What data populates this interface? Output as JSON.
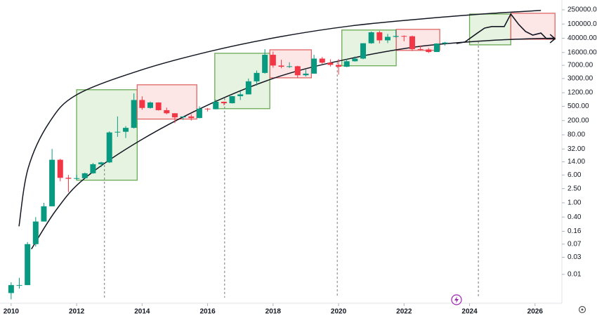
{
  "chart_data": {
    "type": "candlestick",
    "log_scale": true,
    "grid": false,
    "up_color": "#089981",
    "down_color": "#f23645",
    "xlim": [
      2009.66,
      2026.82
    ],
    "xticks": [
      2010,
      2012,
      2014,
      2016,
      2018,
      2020,
      2022,
      2024,
      2026
    ],
    "ylim": [
      0.0017,
      470000
    ],
    "yticks": [
      {
        "value": 250000,
        "label": "250000.00"
      },
      {
        "value": 100000,
        "label": "100000.00"
      },
      {
        "value": 40000,
        "label": "40000.00"
      },
      {
        "value": 16000,
        "label": "16000.00"
      },
      {
        "value": 7000,
        "label": "7000.00"
      },
      {
        "value": 3000,
        "label": "3000.00"
      },
      {
        "value": 1200,
        "label": "1200.00"
      },
      {
        "value": 500,
        "label": "500.00"
      },
      {
        "value": 200,
        "label": "200.00"
      },
      {
        "value": 80,
        "label": "80.00"
      },
      {
        "value": 32,
        "label": "32.00"
      },
      {
        "value": 14,
        "label": "14.00"
      },
      {
        "value": 6,
        "label": "6.00"
      },
      {
        "value": 2.5,
        "label": "2.50"
      },
      {
        "value": 1,
        "label": "1.00"
      },
      {
        "value": 0.4,
        "label": "0.40"
      },
      {
        "value": 0.16,
        "label": "0.16"
      },
      {
        "value": 0.07,
        "label": "0.07"
      },
      {
        "value": 0.03,
        "label": "0.03"
      },
      {
        "value": 0.01,
        "label": "0.01"
      }
    ],
    "x": [
      2010.0,
      2010.25,
      2010.5,
      2010.75,
      2011.0,
      2011.25,
      2011.5,
      2011.75,
      2012.0,
      2012.25,
      2012.5,
      2012.75,
      2013.0,
      2013.25,
      2013.5,
      2013.75,
      2014.0,
      2014.25,
      2014.5,
      2014.75,
      2015.0,
      2015.25,
      2015.5,
      2015.75,
      2016.0,
      2016.25,
      2016.5,
      2016.75,
      2017.0,
      2017.25,
      2017.5,
      2017.75,
      2018.0,
      2018.25,
      2018.5,
      2018.75,
      2019.0,
      2019.25,
      2019.5,
      2019.75,
      2020.0,
      2020.25,
      2020.5,
      2020.75,
      2021.0,
      2021.25,
      2021.5,
      2021.75,
      2022.0,
      2022.25,
      2022.5,
      2022.75,
      2023.0,
      2023.25
    ],
    "open": [
      0.003,
      0.005,
      0.005,
      0.07,
      0.3,
      0.8,
      16,
      5,
      4.7,
      4.9,
      6.7,
      12,
      13.5,
      93,
      97,
      125,
      750,
      450,
      640,
      390,
      320,
      245,
      260,
      235,
      430,
      415,
      670,
      610,
      960,
      1080,
      2500,
      4300,
      13800,
      6900,
      6400,
      6600,
      3700,
      4100,
      10800,
      8300,
      7200,
      6400,
      9100,
      10800,
      29000,
      58800,
      35000,
      43800,
      46300,
      45500,
      19900,
      19400,
      16500,
      28500
    ],
    "high": [
      0.006,
      0.008,
      0.08,
      0.4,
      1.0,
      32,
      17,
      6,
      6,
      7,
      13,
      14,
      100,
      260,
      140,
      1150,
      950,
      680,
      650,
      460,
      320,
      260,
      300,
      500,
      450,
      770,
      680,
      980,
      1300,
      3000,
      5000,
      19800,
      17000,
      10000,
      8500,
      6800,
      5300,
      13800,
      12000,
      10300,
      10500,
      10400,
      12400,
      29000,
      61700,
      64800,
      52900,
      69000,
      48000,
      47400,
      25200,
      21400,
      29000,
      31800
    ],
    "low": [
      0.002,
      0.004,
      0.005,
      0.06,
      0.3,
      0.8,
      4,
      2,
      4.3,
      4.8,
      6.5,
      10,
      13,
      70,
      65,
      120,
      400,
      430,
      380,
      300,
      170,
      210,
      200,
      230,
      360,
      410,
      530,
      600,
      750,
      1080,
      1900,
      4100,
      6000,
      5800,
      5900,
      3150,
      3400,
      4100,
      7700,
      6500,
      3850,
      6200,
      8900,
      10400,
      28000,
      28800,
      29300,
      42000,
      33000,
      17600,
      18200,
      15500,
      16500,
      25000
    ],
    "close": [
      0.005,
      0.005,
      0.07,
      0.3,
      0.8,
      16,
      5,
      4.7,
      4.9,
      6.7,
      12,
      13.5,
      93,
      97,
      125,
      750,
      450,
      640,
      390,
      320,
      245,
      260,
      235,
      430,
      415,
      670,
      610,
      960,
      1080,
      2500,
      4300,
      13800,
      6900,
      6400,
      6600,
      3700,
      4100,
      10800,
      8300,
      7200,
      6400,
      9100,
      10800,
      29000,
      58800,
      35000,
      43800,
      46300,
      45500,
      19900,
      19400,
      16500,
      28500,
      30400
    ],
    "boxes": [
      {
        "color": "green",
        "x": [
          2012.0,
          2013.85
        ],
        "values": [
          4.3,
          1455
        ]
      },
      {
        "color": "red",
        "x": [
          2013.85,
          2015.67
        ],
        "values": [
          220,
          2000
        ]
      },
      {
        "color": "green",
        "x": [
          2016.22,
          2017.9
        ],
        "values": [
          430,
          15200
        ]
      },
      {
        "color": "red",
        "x": [
          2017.9,
          2019.17
        ],
        "values": [
          3130,
          19000
        ]
      },
      {
        "color": "green",
        "x": [
          2020.1,
          2021.76
        ],
        "values": [
          6800,
          68000
        ]
      },
      {
        "color": "red",
        "x": [
          2021.76,
          2023.09
        ],
        "values": [
          18300,
          71000
        ]
      },
      {
        "color": "green",
        "x": [
          2024.0,
          2025.26
        ],
        "values": [
          26200,
          190000
        ]
      },
      {
        "color": "red",
        "x": [
          2025.26,
          2026.61
        ],
        "values": [
          37500,
          200000
        ]
      }
    ],
    "bands": [
      {
        "x": [
          2010.24,
          2010.52,
          2011.16,
          2012.0,
          2013.95,
          2016.09,
          2018.24,
          2020.39,
          2022.53,
          2024.68,
          2026.18
        ],
        "values": [
          0.22,
          9.3,
          174,
          1050,
          5100,
          17400,
          44500,
          89000,
          139000,
          199000,
          240000
        ]
      },
      {
        "x": [
          2010.62,
          2011.37,
          2012.23,
          2013.95,
          2016.09,
          2018.24,
          2020.39,
          2022.53,
          2024.68,
          2026.61
        ],
        "values": [
          0.051,
          0.62,
          4.7,
          56,
          590,
          3550,
          11000,
          24000,
          35000,
          40500
        ]
      }
    ],
    "halvings": [
      2012.85,
      2016.52,
      2019.96,
      2024.27
    ],
    "projection": {
      "x": [
        2023.6,
        2023.86,
        2024.24,
        2024.46,
        2024.68,
        2025.06,
        2025.26,
        2025.5,
        2025.71,
        2025.93,
        2026.18,
        2026.35,
        2026.61
      ],
      "values": [
        28600,
        31500,
        56000,
        77000,
        85000,
        85000,
        190000,
        98000,
        62000,
        49000,
        56000,
        39000,
        39000
      ]
    }
  }
}
